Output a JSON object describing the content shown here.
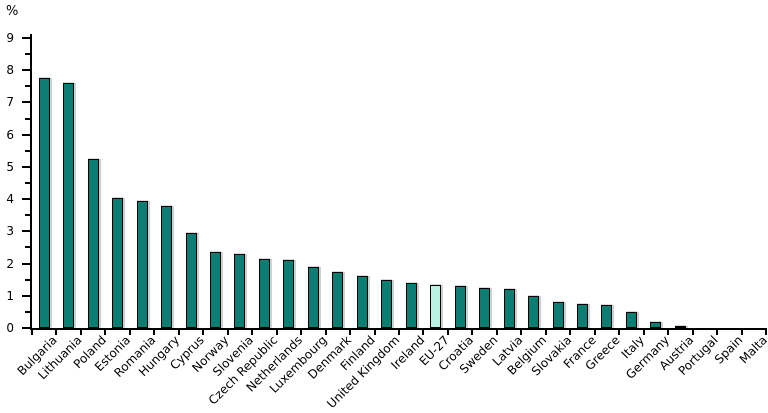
{
  "chart_data": {
    "type": "bar",
    "title": "",
    "xlabel": "",
    "ylabel": "%",
    "ylim": [
      0,
      9
    ],
    "y_tick_labels": [
      "0",
      "1",
      "2",
      "3",
      "4",
      "5",
      "6",
      "7",
      "8",
      "9"
    ],
    "y_minor_tick_interval": 0.5,
    "grid": false,
    "legend": "none",
    "bar_color": "#0B7D73",
    "bar_border_color": "#000000",
    "highlight": {
      "category": "EU-27",
      "color": "#B9F2E1"
    },
    "categories": [
      "Bulgaria",
      "Lithuania",
      "Poland",
      "Estonia",
      "Romania",
      "Hungary",
      "Cyprus",
      "Norway",
      "Slovenia",
      "Czech Republic",
      "Netherlands",
      "Luxembourg",
      "Denmark",
      "Finland",
      "United Kingdom",
      "Ireland",
      "EU-27",
      "Croatia",
      "Sweden",
      "Latvia",
      "Belgium",
      "Slovakia",
      "France",
      "Greece",
      "Italy",
      "Germany",
      "Austria",
      "Portugal",
      "Spain",
      "Malta"
    ],
    "values": [
      7.75,
      7.6,
      5.25,
      4.05,
      3.95,
      3.8,
      2.95,
      2.35,
      2.3,
      2.15,
      2.1,
      1.9,
      1.75,
      1.6,
      1.5,
      1.4,
      1.35,
      1.3,
      1.25,
      1.2,
      1.0,
      0.8,
      0.75,
      0.7,
      0.5,
      0.2,
      0.05,
      0,
      0,
      0
    ]
  }
}
